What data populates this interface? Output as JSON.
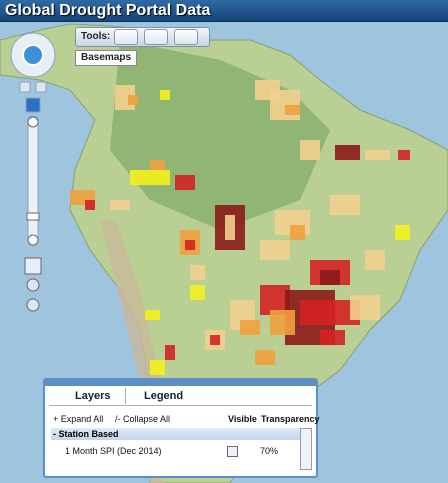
{
  "header": {
    "title": "Global Drought Portal Data"
  },
  "toolbar": {
    "label": "Tools:",
    "tooltip": "Basemaps"
  },
  "layers_panel": {
    "tabs": [
      "Layers",
      "Legend"
    ],
    "expand_all": "+ Expand All",
    "collapse_all": "/- Collapse All",
    "columns": [
      "Visible",
      "Transparency"
    ],
    "group": "- Station Based",
    "layer": {
      "name": "1 Month SPI (Dec 2014)",
      "transparency": "70%"
    }
  }
}
